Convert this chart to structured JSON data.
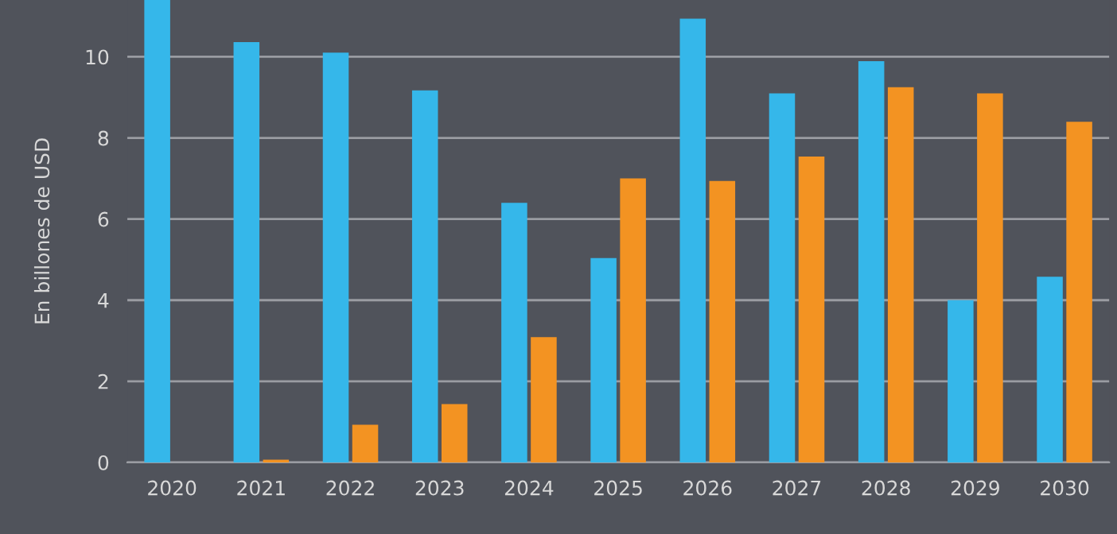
{
  "chart_data": {
    "type": "bar",
    "ylabel": "En billones de USD",
    "categories": [
      "2020",
      "2021",
      "2022",
      "2023",
      "2024",
      "2025",
      "2026",
      "2027",
      "2028",
      "2029",
      "2030"
    ],
    "series": [
      {
        "color": "#35b7ea",
        "values": [
          11.4,
          10.36,
          10.1,
          9.17,
          6.4,
          5.04,
          10.94,
          9.1,
          9.89,
          4.0,
          4.58
        ]
      },
      {
        "color": "#f39322",
        "values": [
          null,
          0.07,
          0.93,
          1.44,
          3.09,
          7.0,
          6.94,
          7.54,
          9.25,
          9.1,
          8.4
        ]
      }
    ],
    "ylim": [
      0,
      11.4
    ],
    "yticks": [
      0,
      2,
      4,
      6,
      8,
      10
    ],
    "grid": "y",
    "legend": false
  }
}
